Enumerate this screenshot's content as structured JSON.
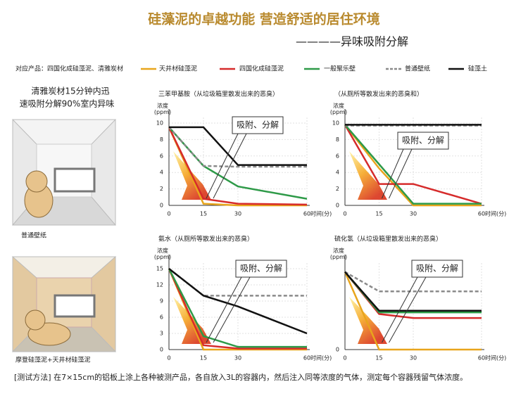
{
  "header": {
    "title": "硅藻泥的卓越功能 营造舒适的居住环境",
    "subtitle": "————异味吸附分解"
  },
  "products_note": "对应产品：四国化成硅藻泥、清雅炭材",
  "side_text": [
    "清雅炭材15分钟内迅",
    "速吸附分解90%室内异味"
  ],
  "images": [
    {
      "label": "普通壁纸"
    },
    {
      "label": "摩登硅藻泥+天井材硅藻泥"
    }
  ],
  "method": "[测试方法] 在7×15cm的铝板上涂上各种被测产品，各自放入3L的容器内，然后注入同等浓度的气体，测定每个容器残留气体浓度。",
  "chart_data": [
    {
      "type": "line",
      "title": "三苯甲基胺（从垃圾箱里散发出来的恶臭）",
      "ylabel": "浓度(ppm)",
      "xlabel": "时间(分)",
      "annotation": "吸附、分解",
      "x": [
        0,
        15,
        30,
        60
      ],
      "xlim": [
        0,
        60
      ],
      "xticks": [
        0,
        15,
        30,
        60
      ],
      "ylim": [
        0,
        10
      ],
      "yticks": [
        0,
        2,
        4,
        6,
        8,
        10
      ],
      "grid": true,
      "series": [
        {
          "name": "天井材硅藻泥",
          "color": "#e8a51c",
          "values": [
            9.5,
            0.2,
            0,
            0
          ]
        },
        {
          "name": "四国化成硅藻泥",
          "color": "#d62b2b",
          "values": [
            9.5,
            0.8,
            0.2,
            0.1
          ]
        },
        {
          "name": "一般聚乐壁",
          "color": "#2e9a48",
          "values": [
            9.5,
            4.8,
            2.3,
            0.8
          ]
        },
        {
          "name": "普通壁纸",
          "color": "#8a8a8a",
          "dashed": true,
          "values": [
            9.5,
            4.8,
            4.7,
            4.7
          ]
        },
        {
          "name": "硅藻土",
          "color": "#111111",
          "values": [
            9.5,
            9.5,
            4.9,
            4.9
          ]
        }
      ]
    },
    {
      "type": "line",
      "title": "（从厕所等散发出来的恶臭和）",
      "ylabel": "浓度(ppm)",
      "xlabel": "时间(分)",
      "annotation": "吸附、分解",
      "x": [
        0,
        15,
        30,
        60
      ],
      "xlim": [
        0,
        60
      ],
      "xticks": [
        0,
        15,
        30,
        60
      ],
      "ylim": [
        0,
        10
      ],
      "yticks": [
        0,
        2,
        4,
        6,
        8,
        10
      ],
      "grid": true,
      "series": [
        {
          "color": "#e8a51c",
          "values": [
            9.8,
            4.5,
            0,
            0
          ]
        },
        {
          "color": "#d62b2b",
          "values": [
            9.8,
            2.6,
            2.6,
            0.2
          ]
        },
        {
          "color": "#2e9a48",
          "values": [
            9.8,
            5,
            0.2,
            0.2
          ]
        },
        {
          "color": "#8a8a8a",
          "dashed": true,
          "values": [
            9.7,
            9.7,
            9.7,
            9.7
          ]
        },
        {
          "color": "#111111",
          "values": [
            9.8,
            9.8,
            9.8,
            9.8
          ]
        }
      ]
    },
    {
      "type": "line",
      "title": "氨水（从厕所等散发出来的恶臭）",
      "ylabel": "浓度(ppm)",
      "xlabel": "时间(分)",
      "annotation": "吸附、分解",
      "x": [
        0,
        15,
        30,
        60
      ],
      "xlim": [
        0,
        60
      ],
      "xticks": [
        0,
        15,
        30,
        60
      ],
      "ylim": [
        0,
        15
      ],
      "yticks": [
        0,
        3,
        6,
        9,
        12,
        15
      ],
      "grid": true,
      "series": [
        {
          "color": "#e8a51c",
          "values": [
            15,
            0,
            0,
            0
          ]
        },
        {
          "color": "#d62b2b",
          "values": [
            15,
            0.8,
            0.2,
            0.2
          ]
        },
        {
          "color": "#2e9a48",
          "values": [
            15,
            2.5,
            0.5,
            0.5
          ]
        },
        {
          "color": "#8a8a8a",
          "dashed": true,
          "values": [
            15,
            10,
            10,
            10
          ]
        },
        {
          "color": "#111111",
          "values": [
            15,
            10,
            8,
            3
          ]
        }
      ]
    },
    {
      "type": "line",
      "title": "硫化氢（从垃圾箱里散发出来的恶臭）",
      "ylabel": "浓度(ppm)",
      "xlabel": "时间(分)",
      "annotation": "吸附、分解",
      "x": [
        0,
        15,
        30,
        60
      ],
      "xlim": [
        0,
        60
      ],
      "xticks": [
        0,
        15,
        30,
        60
      ],
      "ylim": [
        0,
        10
      ],
      "yticks": [
        0
      ],
      "grid": true,
      "series": [
        {
          "color": "#e8a51c",
          "values": [
            9.6,
            0,
            0,
            0
          ]
        },
        {
          "color": "#d62b2b",
          "values": [
            9.6,
            4.4,
            3.9,
            3.9
          ]
        },
        {
          "color": "#2e9a48",
          "values": [
            9.6,
            4.6,
            4.6,
            4.6
          ]
        },
        {
          "color": "#8a8a8a",
          "dashed": true,
          "values": [
            9.6,
            7.2,
            7.2,
            7.2
          ]
        },
        {
          "color": "#111111",
          "values": [
            9.6,
            4.8,
            4.8,
            4.8
          ]
        }
      ]
    }
  ]
}
